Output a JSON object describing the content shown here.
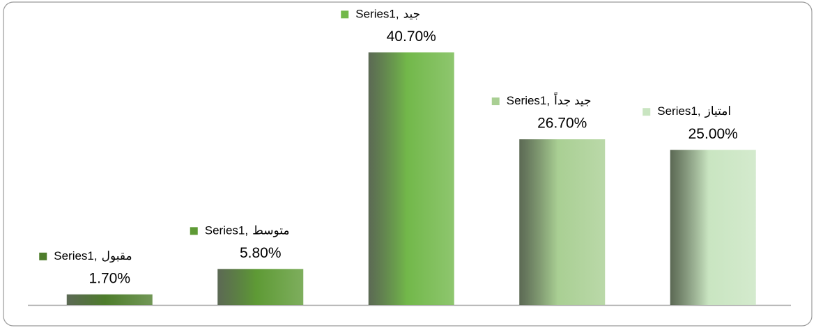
{
  "chart_data": {
    "type": "bar",
    "categories": [
      "مقبول",
      "متوسط",
      "جيد",
      "جيد جداً",
      "امتياز"
    ],
    "series": [
      {
        "name": "Series1",
        "values": [
          1.7,
          5.8,
          40.7,
          26.7,
          25.0
        ],
        "value_labels": [
          "1.70%",
          "5.80%",
          "40.70%",
          "26.70%",
          "25.00%"
        ],
        "colors": [
          "#4e7d2c",
          "#5e9a35",
          "#72b84a",
          "#a9cf93",
          "#c9e5c1"
        ]
      }
    ],
    "data_label_separator": ",",
    "ylim": [
      0,
      45
    ],
    "grid": false
  }
}
